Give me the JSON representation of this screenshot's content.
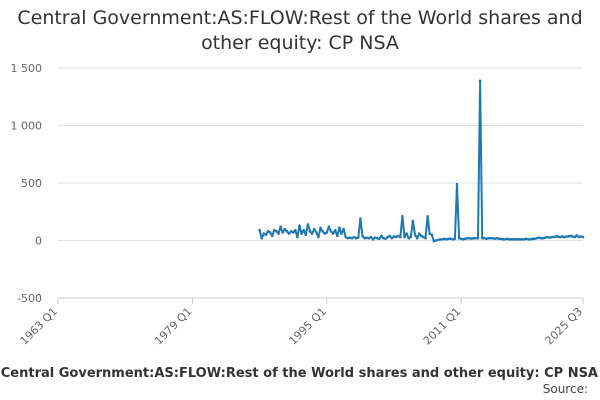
{
  "title_lines": [
    "Central Government:AS:FLOW:Rest of the World shares and",
    "other equity: CP NSA"
  ],
  "source_label": "Source:",
  "colors": {
    "series": "#1f77b4",
    "grid": "#e0e0e0",
    "axis": "#cccccc"
  },
  "chart_data": {
    "type": "line",
    "title": "Central Government:AS:FLOW:Rest of the World shares and other equity: CP NSA",
    "xlabel": "",
    "ylabel": "",
    "x_unit": "quarter",
    "x_range": [
      "1963 Q1",
      "2025 Q3"
    ],
    "x_tick_labels": [
      "1963 Q1",
      "1979 Q1",
      "1995 Q1",
      "2011 Q1",
      "2025 Q3"
    ],
    "ylim": [
      -500,
      1500
    ],
    "y_ticks": [
      -500,
      0,
      500,
      1000,
      1500
    ],
    "y_tick_labels": [
      "-500",
      "0",
      "500",
      "1 000",
      "1 500"
    ],
    "grid": true,
    "legend_position": "bottom",
    "series": [
      {
        "name": "Central Government:AS:FLOW:Rest of the World shares and other equity: CP NSA",
        "points": [
          [
            "1987 Q1",
            90
          ],
          [
            "1987 Q2",
            20
          ],
          [
            "1987 Q3",
            60
          ],
          [
            "1987 Q4",
            50
          ],
          [
            "1988 Q1",
            80
          ],
          [
            "1988 Q2",
            70
          ],
          [
            "1988 Q3",
            40
          ],
          [
            "1988 Q4",
            90
          ],
          [
            "1989 Q1",
            80
          ],
          [
            "1989 Q2",
            60
          ],
          [
            "1989 Q3",
            120
          ],
          [
            "1989 Q4",
            70
          ],
          [
            "1990 Q1",
            100
          ],
          [
            "1990 Q2",
            80
          ],
          [
            "1990 Q3",
            60
          ],
          [
            "1990 Q4",
            80
          ],
          [
            "1991 Q1",
            70
          ],
          [
            "1991 Q2",
            90
          ],
          [
            "1991 Q3",
            30
          ],
          [
            "1991 Q4",
            130
          ],
          [
            "1992 Q1",
            60
          ],
          [
            "1992 Q2",
            90
          ],
          [
            "1992 Q3",
            50
          ],
          [
            "1992 Q4",
            140
          ],
          [
            "1993 Q1",
            80
          ],
          [
            "1993 Q2",
            60
          ],
          [
            "1993 Q3",
            100
          ],
          [
            "1993 Q4",
            70
          ],
          [
            "1994 Q1",
            30
          ],
          [
            "1994 Q2",
            110
          ],
          [
            "1994 Q3",
            80
          ],
          [
            "1994 Q4",
            60
          ],
          [
            "1995 Q1",
            70
          ],
          [
            "1995 Q2",
            120
          ],
          [
            "1995 Q3",
            80
          ],
          [
            "1995 Q4",
            60
          ],
          [
            "1996 Q1",
            90
          ],
          [
            "1996 Q2",
            40
          ],
          [
            "1996 Q3",
            110
          ],
          [
            "1996 Q4",
            60
          ],
          [
            "1997 Q1",
            100
          ],
          [
            "1997 Q2",
            30
          ],
          [
            "1997 Q3",
            20
          ],
          [
            "1997 Q4",
            25
          ],
          [
            "1998 Q1",
            20
          ],
          [
            "1998 Q2",
            30
          ],
          [
            "1998 Q3",
            20
          ],
          [
            "1998 Q4",
            25
          ],
          [
            "1999 Q1",
            190
          ],
          [
            "1999 Q2",
            40
          ],
          [
            "1999 Q3",
            20
          ],
          [
            "1999 Q4",
            25
          ],
          [
            "2000 Q1",
            20
          ],
          [
            "2000 Q2",
            30
          ],
          [
            "2000 Q3",
            10
          ],
          [
            "2000 Q4",
            25
          ],
          [
            "2001 Q1",
            20
          ],
          [
            "2001 Q2",
            15
          ],
          [
            "2001 Q3",
            40
          ],
          [
            "2001 Q4",
            20
          ],
          [
            "2002 Q1",
            15
          ],
          [
            "2002 Q2",
            30
          ],
          [
            "2002 Q3",
            40
          ],
          [
            "2002 Q4",
            20
          ],
          [
            "2003 Q1",
            35
          ],
          [
            "2003 Q2",
            30
          ],
          [
            "2003 Q3",
            40
          ],
          [
            "2003 Q4",
            30
          ],
          [
            "2004 Q1",
            210
          ],
          [
            "2004 Q2",
            30
          ],
          [
            "2004 Q3",
            60
          ],
          [
            "2004 Q4",
            20
          ],
          [
            "2005 Q1",
            30
          ],
          [
            "2005 Q2",
            170
          ],
          [
            "2005 Q3",
            50
          ],
          [
            "2005 Q4",
            20
          ],
          [
            "2006 Q1",
            60
          ],
          [
            "2006 Q2",
            40
          ],
          [
            "2006 Q3",
            30
          ],
          [
            "2006 Q4",
            20
          ],
          [
            "2007 Q1",
            210
          ],
          [
            "2007 Q2",
            60
          ],
          [
            "2007 Q3",
            50
          ],
          [
            "2007 Q4",
            -5
          ],
          [
            "2008 Q1",
            0
          ],
          [
            "2008 Q2",
            5
          ],
          [
            "2008 Q3",
            10
          ],
          [
            "2008 Q4",
            10
          ],
          [
            "2009 Q1",
            15
          ],
          [
            "2009 Q2",
            10
          ],
          [
            "2009 Q3",
            15
          ],
          [
            "2009 Q4",
            15
          ],
          [
            "2010 Q1",
            10
          ],
          [
            "2010 Q2",
            15
          ],
          [
            "2010 Q3",
            490
          ],
          [
            "2010 Q4",
            20
          ],
          [
            "2011 Q1",
            15
          ],
          [
            "2011 Q2",
            10
          ],
          [
            "2011 Q3",
            15
          ],
          [
            "2011 Q4",
            20
          ],
          [
            "2012 Q1",
            20
          ],
          [
            "2012 Q2",
            15
          ],
          [
            "2012 Q3",
            20
          ],
          [
            "2012 Q4",
            20
          ],
          [
            "2013 Q1",
            20
          ],
          [
            "2013 Q2",
            1390
          ],
          [
            "2013 Q3",
            20
          ],
          [
            "2013 Q4",
            20
          ],
          [
            "2014 Q1",
            15
          ],
          [
            "2014 Q2",
            20
          ],
          [
            "2014 Q3",
            20
          ],
          [
            "2014 Q4",
            20
          ],
          [
            "2015 Q1",
            15
          ],
          [
            "2015 Q2",
            20
          ],
          [
            "2015 Q3",
            15
          ],
          [
            "2015 Q4",
            15
          ],
          [
            "2016 Q1",
            10
          ],
          [
            "2016 Q2",
            10
          ],
          [
            "2016 Q3",
            15
          ],
          [
            "2016 Q4",
            10
          ],
          [
            "2017 Q1",
            10
          ],
          [
            "2017 Q2",
            10
          ],
          [
            "2017 Q3",
            10
          ],
          [
            "2017 Q4",
            10
          ],
          [
            "2018 Q1",
            10
          ],
          [
            "2018 Q2",
            10
          ],
          [
            "2018 Q3",
            10
          ],
          [
            "2018 Q4",
            15
          ],
          [
            "2019 Q1",
            10
          ],
          [
            "2019 Q2",
            10
          ],
          [
            "2019 Q3",
            15
          ],
          [
            "2019 Q4",
            15
          ],
          [
            "2020 Q1",
            20
          ],
          [
            "2020 Q2",
            25
          ],
          [
            "2020 Q3",
            20
          ],
          [
            "2020 Q4",
            20
          ],
          [
            "2021 Q1",
            25
          ],
          [
            "2021 Q2",
            30
          ],
          [
            "2021 Q3",
            25
          ],
          [
            "2021 Q4",
            30
          ],
          [
            "2022 Q1",
            30
          ],
          [
            "2022 Q2",
            35
          ],
          [
            "2022 Q3",
            35
          ],
          [
            "2022 Q4",
            30
          ],
          [
            "2023 Q1",
            35
          ],
          [
            "2023 Q2",
            30
          ],
          [
            "2023 Q3",
            35
          ],
          [
            "2023 Q4",
            35
          ],
          [
            "2024 Q1",
            40
          ],
          [
            "2024 Q2",
            35
          ],
          [
            "2024 Q3",
            30
          ],
          [
            "2024 Q4",
            45
          ],
          [
            "2025 Q1",
            30
          ],
          [
            "2025 Q2",
            35
          ],
          [
            "2025 Q3",
            30
          ]
        ]
      }
    ]
  }
}
